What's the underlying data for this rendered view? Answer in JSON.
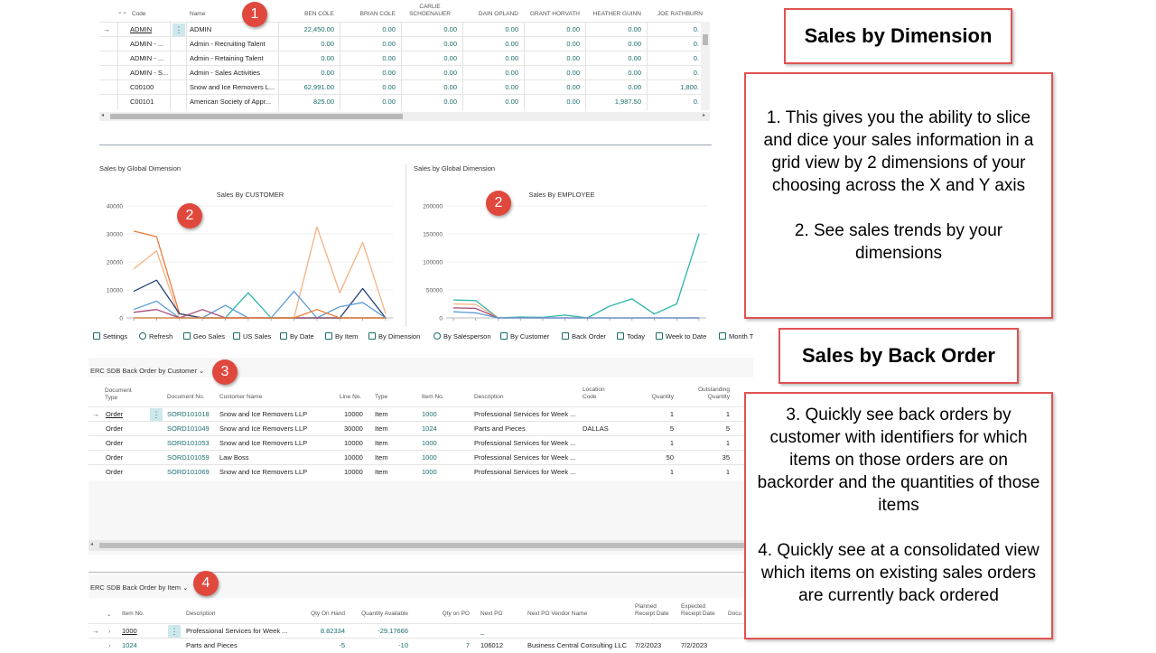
{
  "top_grid": {
    "headers": {
      "code": "Code",
      "name": "Name",
      "cols": [
        "BEN COLE",
        "BRIAN COLE",
        "CARLIE SCHOENAUER",
        "DAIN OPLAND",
        "GRANT HORVATH",
        "HEATHER GUINN",
        "JOE RATHBURN"
      ]
    },
    "rows": [
      {
        "code": "ADMIN",
        "name": "ADMIN",
        "vals": [
          "22,450.00",
          "0.00",
          "0.00",
          "0.00",
          "0.00",
          "0.00",
          "0."
        ]
      },
      {
        "code": "ADMIN - ...",
        "name": "Admin - Recruiting Talent",
        "vals": [
          "0.00",
          "0.00",
          "0.00",
          "0.00",
          "0.00",
          "0.00",
          "0."
        ]
      },
      {
        "code": "ADMIN - ...",
        "name": "Admin - Retaining Talent",
        "vals": [
          "0.00",
          "0.00",
          "0.00",
          "0.00",
          "0.00",
          "0.00",
          "0."
        ]
      },
      {
        "code": "ADMIN - S...",
        "name": "Admin - Sales Activities",
        "vals": [
          "0.00",
          "0.00",
          "0.00",
          "0.00",
          "0.00",
          "0.00",
          "0."
        ]
      },
      {
        "code": "C00100",
        "name": "Snow and Ice Removers L...",
        "vals": [
          "62,991.00",
          "0.00",
          "0.00",
          "0.00",
          "0.00",
          "0.00",
          "1,800."
        ]
      },
      {
        "code": "C00101",
        "name": "American Society of Appr...",
        "vals": [
          "825.00",
          "0.00",
          "0.00",
          "0.00",
          "0.00",
          "1,987.50",
          "0."
        ]
      }
    ]
  },
  "charts": {
    "left_caption": "Sales by Global Dimension",
    "right_caption": "Sales by Global Dimension"
  },
  "chart_data": [
    {
      "type": "line",
      "title": "Sales By CUSTOMER",
      "xlabel": "",
      "ylabel": "",
      "ylim": [
        0,
        40000
      ],
      "yticks": [
        "0",
        "10000",
        "20000",
        "30000",
        "40000"
      ],
      "x": [
        1,
        2,
        3,
        4,
        5,
        6,
        7,
        8,
        9,
        10,
        11,
        12
      ],
      "series": [
        {
          "color": "#f0793a",
          "values": [
            31000,
            29000,
            1500,
            0,
            0,
            0,
            0,
            0,
            0,
            0,
            0,
            0
          ]
        },
        {
          "color": "#f4b183",
          "values": [
            17500,
            24000,
            0,
            0,
            0,
            0,
            0,
            0,
            32500,
            9000,
            27000,
            1500
          ]
        },
        {
          "color": "#264478",
          "values": [
            9500,
            13500,
            1500,
            0,
            0,
            0,
            0,
            0,
            0,
            0,
            10500,
            0
          ]
        },
        {
          "color": "#2cb5a8",
          "values": [
            0,
            0,
            0,
            0,
            0,
            9000,
            0,
            0,
            0,
            0,
            0,
            0
          ]
        },
        {
          "color": "#5b9bd5",
          "values": [
            3000,
            6000,
            0,
            0,
            4500,
            0,
            0,
            9500,
            0,
            4000,
            5500,
            0
          ]
        },
        {
          "color": "#a64d79",
          "values": [
            2000,
            3000,
            0,
            3000,
            0,
            0,
            0,
            0,
            0,
            0,
            0,
            0
          ]
        },
        {
          "color": "#ed7d31",
          "values": [
            0,
            0,
            0,
            0,
            0,
            0,
            0,
            0,
            3000,
            0,
            0,
            0
          ]
        }
      ]
    },
    {
      "type": "line",
      "title": "Sales By EMPLOYEE",
      "xlabel": "",
      "ylabel": "",
      "ylim": [
        0,
        200000
      ],
      "yticks": [
        "0",
        "50000",
        "100000",
        "150000",
        "200000"
      ],
      "x": [
        1,
        2,
        3,
        4,
        5,
        6,
        7,
        8,
        9,
        10,
        11,
        12
      ],
      "series": [
        {
          "color": "#2cb5a8",
          "values": [
            32000,
            31000,
            0,
            1500,
            1000,
            5000,
            0,
            21000,
            34000,
            7000,
            25000,
            150000
          ]
        },
        {
          "color": "#f4b183",
          "values": [
            25000,
            24000,
            0,
            0,
            0,
            0,
            0,
            0,
            0,
            0,
            0,
            0
          ]
        },
        {
          "color": "#a64d79",
          "values": [
            18000,
            17000,
            0,
            0,
            0,
            0,
            0,
            0,
            0,
            0,
            0,
            0
          ]
        },
        {
          "color": "#5b9bd5",
          "values": [
            11000,
            9000,
            0,
            0,
            0,
            0,
            0,
            0,
            0,
            0,
            0,
            0
          ]
        }
      ]
    }
  ],
  "toolbar": {
    "items": [
      "Settings",
      "Refresh",
      "Geo Sales",
      "US Sales",
      "By Date",
      "By Item",
      "By Dimension",
      "By Salesperson",
      "By Customer",
      "Back Order",
      "Today",
      "Week to Date",
      "Month T"
    ]
  },
  "backorder_customer": {
    "title": "ERC SDB Back Order by Customer",
    "headers": {
      "doc_type": "Document Type",
      "doc_no": "Document No.",
      "customer": "Customer Name",
      "line_no": "Line No.",
      "type": "Type",
      "item_no": "Item No.",
      "description": "Description",
      "location": "Location Code",
      "quantity": "Quantity",
      "outstanding": "Outstanding Quantity"
    },
    "rows": [
      {
        "doc_type": "Order",
        "doc_no": "SORD101018",
        "customer": "Snow and Ice Removers LLP",
        "line_no": "10000",
        "type": "Item",
        "item_no": "1000",
        "description": "Professional Services for Week ...",
        "location": "",
        "quantity": "1",
        "outstanding": "1"
      },
      {
        "doc_type": "Order",
        "doc_no": "SORD101049",
        "customer": "Snow and Ice Removers LLP",
        "line_no": "30000",
        "type": "Item",
        "item_no": "1024",
        "description": "Parts and Pieces",
        "location": "DALLAS",
        "quantity": "5",
        "outstanding": "5"
      },
      {
        "doc_type": "Order",
        "doc_no": "SORD101053",
        "customer": "Snow and Ice Removers LLP",
        "line_no": "10000",
        "type": "Item",
        "item_no": "1000",
        "description": "Professional Services for Week ...",
        "location": "",
        "quantity": "1",
        "outstanding": "1"
      },
      {
        "doc_type": "Order",
        "doc_no": "SORD101059",
        "customer": "Law Boss",
        "line_no": "10000",
        "type": "Item",
        "item_no": "1000",
        "description": "Professional Services for Week ...",
        "location": "",
        "quantity": "50",
        "outstanding": "35"
      },
      {
        "doc_type": "Order",
        "doc_no": "SORD101069",
        "customer": "Snow and Ice Removers LLP",
        "line_no": "10000",
        "type": "Item",
        "item_no": "1000",
        "description": "Professional Services for Week ...",
        "location": "",
        "quantity": "1",
        "outstanding": "1"
      }
    ]
  },
  "backorder_item": {
    "title": "ERC SDB Back Order by Item",
    "headers": {
      "item_no": "Item No.",
      "description": "Description",
      "qty_on_hand": "Qty On Hand",
      "qty_available": "Quantity Available",
      "qty_on_po": "Qty on PO",
      "next_po": "Next PO",
      "vendor": "Next PO Vendor Name",
      "planned": "Planned Receipt Date",
      "expected": "Expected Receipt Date",
      "docu": "Docu"
    },
    "rows": [
      {
        "item_no": "1000",
        "description": "Professional Services for Week ...",
        "qty_on_hand": "8.82334",
        "qty_available": "-29.17666",
        "qty_on_po": "",
        "next_po": "_",
        "vendor": "",
        "planned": "",
        "expected": ""
      },
      {
        "item_no": "1024",
        "description": "Parts and Pieces",
        "qty_on_hand": "-5",
        "qty_available": "-10",
        "qty_on_po": "7",
        "next_po": "106012",
        "vendor": "Business Central Consulting LLC",
        "planned": "7/2/2023",
        "expected": "7/2/2023"
      }
    ]
  },
  "callouts": {
    "dim_title": "Sales by Dimension",
    "dim_text_1": "1. This gives you the ability to slice and dice your sales information in a grid view by 2 dimensions of your choosing across the X and Y axis",
    "dim_text_2": "2. See sales trends by your dimensions",
    "bo_title": "Sales by Back Order",
    "bo_text_3": "3. Quickly see back orders by customer with identifiers for which items on those orders are on backorder and the quantities of those items",
    "bo_text_4": "4. Quickly see at a consolidated view which items on existing sales orders are currently back ordered"
  },
  "badges": [
    "1",
    "2",
    "2",
    "3",
    "4"
  ],
  "colors": {
    "accent": "#1a6d6d",
    "callout_border": "#e05252",
    "badge": "#e0483e"
  }
}
